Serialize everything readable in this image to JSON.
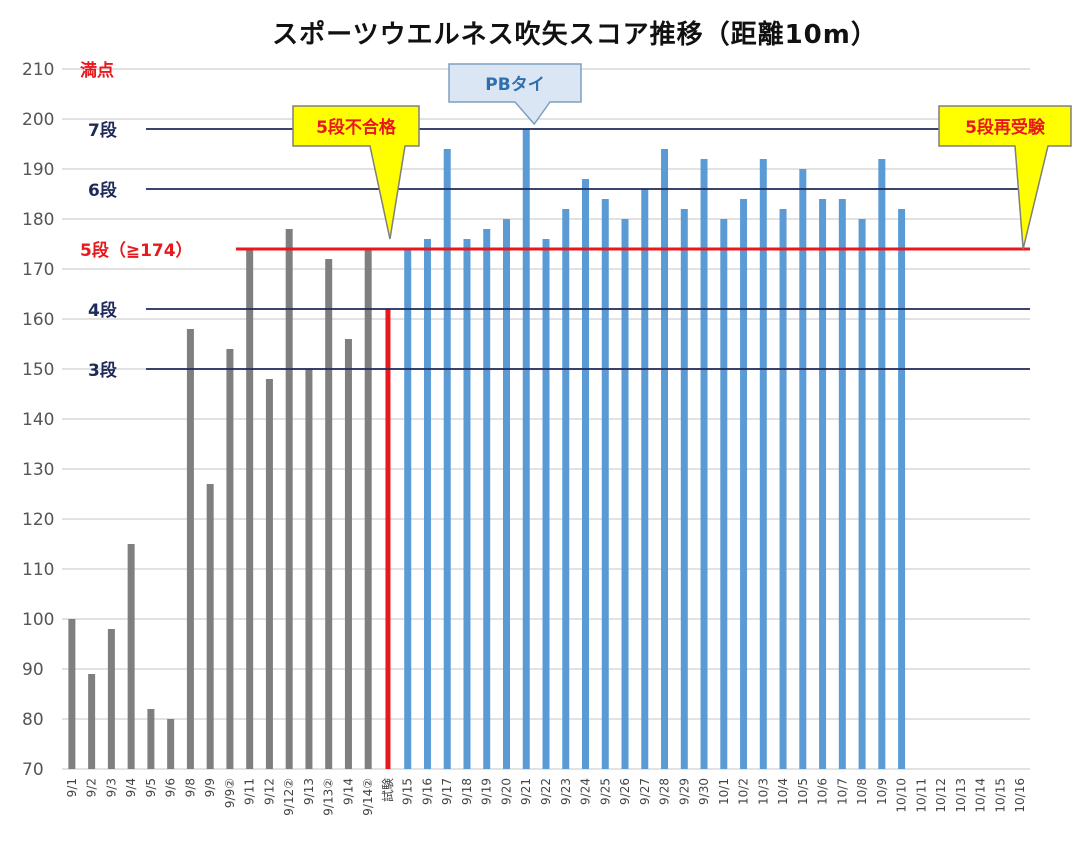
{
  "chart_data": {
    "type": "bar",
    "title": "スポーツウエルネス吹矢スコア推移（距離10m）",
    "ylim": [
      70,
      210
    ],
    "yticks": [
      70,
      80,
      90,
      100,
      110,
      120,
      130,
      140,
      150,
      160,
      170,
      180,
      190,
      200,
      210
    ],
    "grid": true,
    "categories": [
      "9/1",
      "9/2",
      "9/3",
      "9/4",
      "9/5",
      "9/6",
      "9/8",
      "9/9",
      "9/9②",
      "9/11",
      "9/12",
      "9/12②",
      "9/13",
      "9/13②",
      "9/14",
      "9/14②",
      "試験",
      "9/15",
      "9/16",
      "9/17",
      "9/18",
      "9/19",
      "9/20",
      "9/21",
      "9/22",
      "9/23",
      "9/24",
      "9/25",
      "9/26",
      "9/27",
      "9/28",
      "9/29",
      "9/30",
      "10/1",
      "10/2",
      "10/3",
      "10/4",
      "10/5",
      "10/6",
      "10/7",
      "10/8",
      "10/9",
      "10/10",
      "10/11",
      "10/12",
      "10/13",
      "10/14",
      "10/15",
      "10/16"
    ],
    "values": [
      100,
      89,
      98,
      115,
      82,
      80,
      158,
      127,
      154,
      174,
      148,
      178,
      150,
      172,
      156,
      174,
      162,
      174,
      176,
      194,
      176,
      178,
      180,
      198,
      176,
      182,
      188,
      184,
      180,
      186,
      194,
      182,
      192,
      180,
      184,
      192,
      182,
      190,
      184,
      184,
      180,
      192,
      182,
      null,
      null,
      null,
      null,
      null,
      null
    ],
    "bar_colors": {
      "before_exam": "#7f7f7f",
      "exam": "#e8181c",
      "after_exam": "#5b9bd5"
    },
    "reference_lines": [
      {
        "label": "満点",
        "value": 210,
        "color": "#e8181c",
        "draw_line": false
      },
      {
        "label": "7段",
        "value": 198,
        "color": "#1f2a5a",
        "draw_line": true
      },
      {
        "label": "6段",
        "value": 186,
        "color": "#1f2a5a",
        "draw_line": true
      },
      {
        "label": "5段（≧174）",
        "value": 174,
        "color": "#e8181c",
        "draw_line": true
      },
      {
        "label": "4段",
        "value": 162,
        "color": "#1f2a5a",
        "draw_line": true
      },
      {
        "label": "3段",
        "value": 150,
        "color": "#1f2a5a",
        "draw_line": true
      }
    ],
    "annotations": [
      {
        "text": "5段不合格",
        "style": "yellow",
        "target_category": "試験"
      },
      {
        "text": "PBタイ",
        "style": "blue",
        "target_category": "9/21"
      },
      {
        "text": "5段再受験",
        "style": "yellow",
        "target_category": "10/16"
      }
    ]
  }
}
